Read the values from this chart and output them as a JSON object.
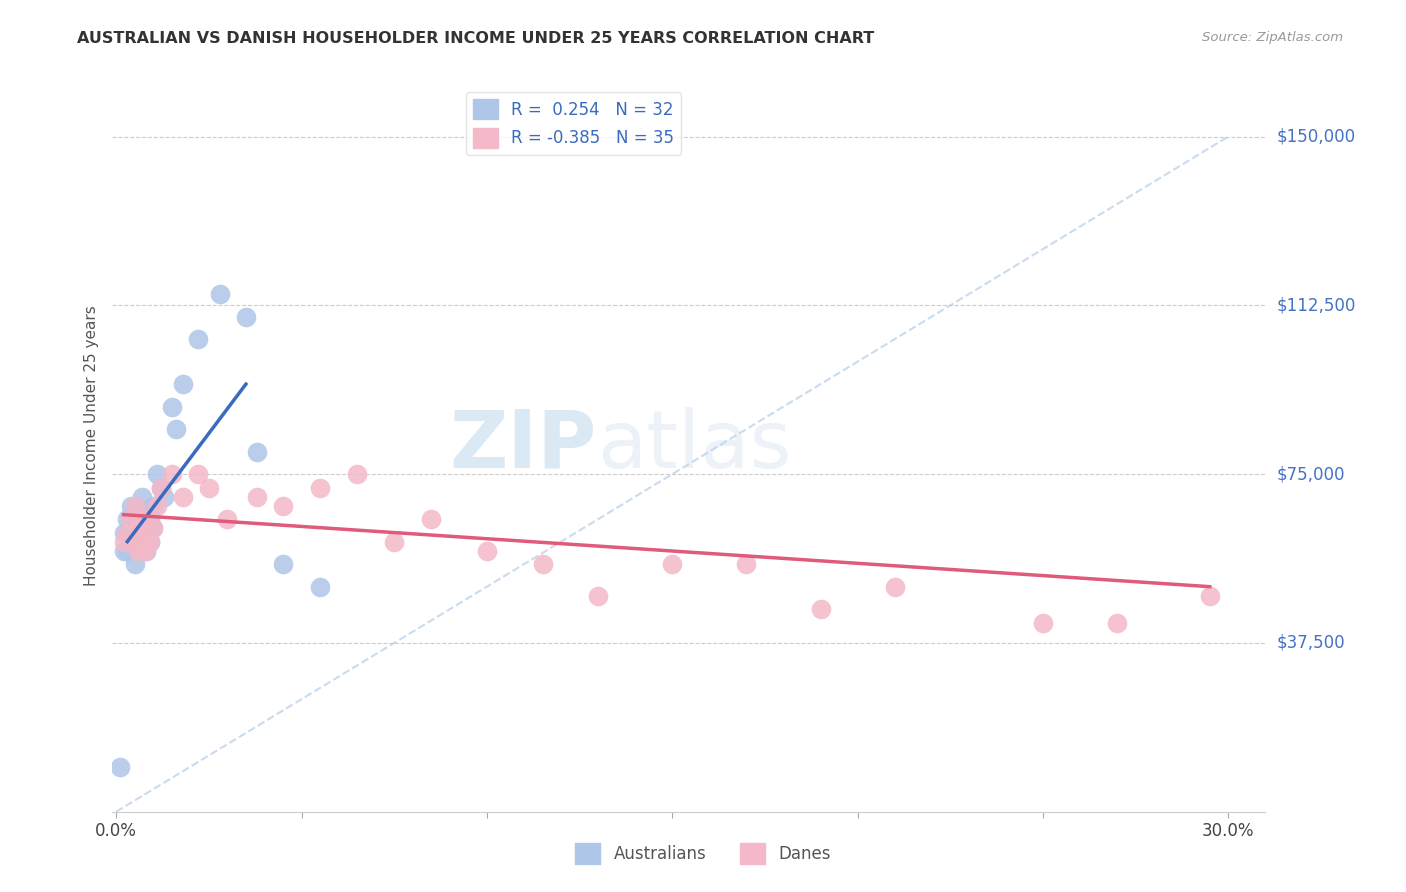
{
  "title": "AUSTRALIAN VS DANISH HOUSEHOLDER INCOME UNDER 25 YEARS CORRELATION CHART",
  "source": "Source: ZipAtlas.com",
  "ylabel": "Householder Income Under 25 years",
  "ytick_labels": [
    "$37,500",
    "$75,000",
    "$112,500",
    "$150,000"
  ],
  "ytick_values": [
    37500,
    75000,
    112500,
    150000
  ],
  "ymin": 0,
  "ymax": 162500,
  "xmin": -0.001,
  "xmax": 0.31,
  "legend_R_aus": "0.254",
  "legend_N_aus": "32",
  "legend_R_dan": "-0.385",
  "legend_N_dan": "35",
  "aus_color": "#aec6e8",
  "dan_color": "#f4b8c8",
  "aus_line_color": "#3a6bbf",
  "dan_line_color": "#e05a7a",
  "dashed_line_color": "#b8d0ea",
  "background_color": "#ffffff",
  "grid_color": "#cccccc",
  "watermark_zip": "ZIP",
  "watermark_atlas": "atlas",
  "aus_x": [
    0.001,
    0.002,
    0.002,
    0.003,
    0.003,
    0.004,
    0.004,
    0.005,
    0.005,
    0.005,
    0.006,
    0.006,
    0.007,
    0.007,
    0.008,
    0.008,
    0.009,
    0.009,
    0.01,
    0.01,
    0.011,
    0.012,
    0.013,
    0.015,
    0.016,
    0.018,
    0.022,
    0.028,
    0.035,
    0.038,
    0.045,
    0.055
  ],
  "aus_y": [
    10000,
    58000,
    62000,
    65000,
    58000,
    63000,
    68000,
    62000,
    67000,
    55000,
    64000,
    60000,
    70000,
    66000,
    63000,
    58000,
    65000,
    60000,
    68000,
    63000,
    75000,
    72000,
    70000,
    90000,
    85000,
    95000,
    105000,
    115000,
    110000,
    80000,
    55000,
    50000
  ],
  "dan_x": [
    0.002,
    0.003,
    0.004,
    0.005,
    0.005,
    0.006,
    0.006,
    0.007,
    0.008,
    0.008,
    0.009,
    0.01,
    0.011,
    0.012,
    0.015,
    0.018,
    0.022,
    0.025,
    0.03,
    0.038,
    0.045,
    0.055,
    0.065,
    0.075,
    0.085,
    0.1,
    0.115,
    0.13,
    0.15,
    0.17,
    0.19,
    0.21,
    0.25,
    0.27,
    0.295
  ],
  "dan_y": [
    60000,
    62000,
    65000,
    60000,
    68000,
    58000,
    63000,
    62000,
    58000,
    65000,
    60000,
    63000,
    68000,
    72000,
    75000,
    70000,
    75000,
    72000,
    65000,
    70000,
    68000,
    72000,
    75000,
    60000,
    65000,
    58000,
    55000,
    48000,
    55000,
    55000,
    45000,
    50000,
    42000,
    42000,
    48000
  ],
  "aus_line_x": [
    0.003,
    0.035
  ],
  "aus_line_y": [
    60000,
    95000
  ],
  "dan_line_x": [
    0.002,
    0.295
  ],
  "dan_line_y": [
    66000,
    50000
  ],
  "dashed_line_x": [
    0.0,
    0.3
  ],
  "dashed_line_y": [
    0,
    150000
  ]
}
